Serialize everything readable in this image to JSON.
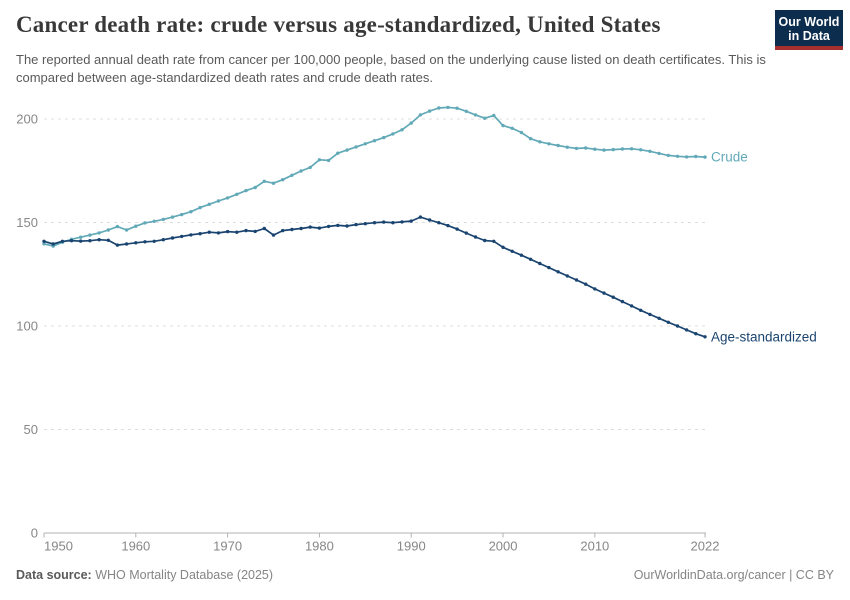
{
  "header": {
    "title": "Cancer death rate: crude versus age-standardized, United States",
    "subtitle": "The reported annual death rate from cancer per 100,000 people, based on the underlying cause listed on death certificates. This is compared between age-standardized death rates and crude death rates.",
    "logo": {
      "line1": "Our World",
      "line2": "in Data"
    }
  },
  "footer": {
    "source_label": "Data source:",
    "source_value": " WHO Mortality Database (2025)",
    "credit": "OurWorldinData.org/cancer | CC BY"
  },
  "colors": {
    "crude": "#62a9b8",
    "age_standardized": "#1a4470",
    "grid": "#dcdcdc",
    "axis": "#b3b3b3",
    "tick_text": "#878787",
    "logo_bg": "#0d2d4f",
    "logo_stripe": "#a63030"
  },
  "chart_data": {
    "type": "line",
    "title": "Cancer death rate: crude versus age-standardized, United States",
    "xlabel": "",
    "ylabel": "",
    "ylim": [
      0,
      210
    ],
    "yticks": [
      0,
      50,
      100,
      150,
      200
    ],
    "xticks": [
      1950,
      1960,
      1970,
      1980,
      1990,
      2000,
      2010,
      2022
    ],
    "grid": "horizontal-dashed",
    "legend_position": "line-end-labels",
    "x_start": 1950,
    "x_end": 2022,
    "x": [
      1950,
      1951,
      1952,
      1953,
      1954,
      1955,
      1956,
      1957,
      1958,
      1959,
      1960,
      1961,
      1962,
      1963,
      1964,
      1965,
      1966,
      1967,
      1968,
      1969,
      1970,
      1971,
      1972,
      1973,
      1974,
      1975,
      1976,
      1977,
      1978,
      1979,
      1980,
      1981,
      1982,
      1983,
      1984,
      1985,
      1986,
      1987,
      1988,
      1989,
      1990,
      1991,
      1992,
      1993,
      1994,
      1995,
      1996,
      1997,
      1998,
      1999,
      2000,
      2001,
      2002,
      2003,
      2004,
      2005,
      2006,
      2007,
      2008,
      2009,
      2010,
      2011,
      2012,
      2013,
      2014,
      2015,
      2016,
      2017,
      2018,
      2019,
      2020,
      2021,
      2022
    ],
    "series": [
      {
        "name": "Crude",
        "color": "#62a9b8",
        "values": [
          139.7,
          138.6,
          140.5,
          141.9,
          142.9,
          143.9,
          145.0,
          146.4,
          148.0,
          146.4,
          148.2,
          149.8,
          150.6,
          151.5,
          152.6,
          153.8,
          155.2,
          157.2,
          158.8,
          160.4,
          161.9,
          163.6,
          165.4,
          166.9,
          169.9,
          169.0,
          170.7,
          172.8,
          174.9,
          176.6,
          180.3,
          180.0,
          183.5,
          185.0,
          186.5,
          188.0,
          189.5,
          191.0,
          192.8,
          194.8,
          198.0,
          202.0,
          203.8,
          205.3,
          205.6,
          205.2,
          203.7,
          202.0,
          200.4,
          201.7,
          196.8,
          195.5,
          193.5,
          190.5,
          189.0,
          188.0,
          187.2,
          186.4,
          185.8,
          186.0,
          185.4,
          185.0,
          185.2,
          185.5,
          185.6,
          185.1,
          184.4,
          183.4,
          182.4,
          182.0,
          181.7,
          181.9,
          181.6
        ]
      },
      {
        "name": "Age-standardized",
        "color": "#1a4470",
        "values": [
          140.9,
          139.6,
          140.9,
          141.2,
          141.0,
          141.2,
          141.7,
          141.4,
          139.1,
          139.6,
          140.2,
          140.7,
          140.9,
          141.7,
          142.5,
          143.3,
          144.0,
          144.6,
          145.3,
          145.0,
          145.6,
          145.3,
          146.1,
          145.7,
          147.1,
          143.9,
          146.1,
          146.6,
          147.1,
          147.8,
          147.3,
          148.1,
          148.6,
          148.3,
          149.0,
          149.4,
          149.9,
          150.2,
          149.9,
          150.3,
          150.7,
          152.6,
          151.2,
          149.9,
          148.5,
          146.8,
          144.9,
          143.0,
          141.3,
          140.9,
          138.0,
          136.1,
          134.2,
          132.2,
          130.2,
          128.2,
          126.2,
          124.2,
          122.2,
          120.2,
          117.9,
          115.9,
          113.9,
          111.8,
          109.7,
          107.6,
          105.6,
          103.7,
          101.8,
          100.0,
          98.1,
          96.3,
          94.8
        ]
      }
    ]
  }
}
